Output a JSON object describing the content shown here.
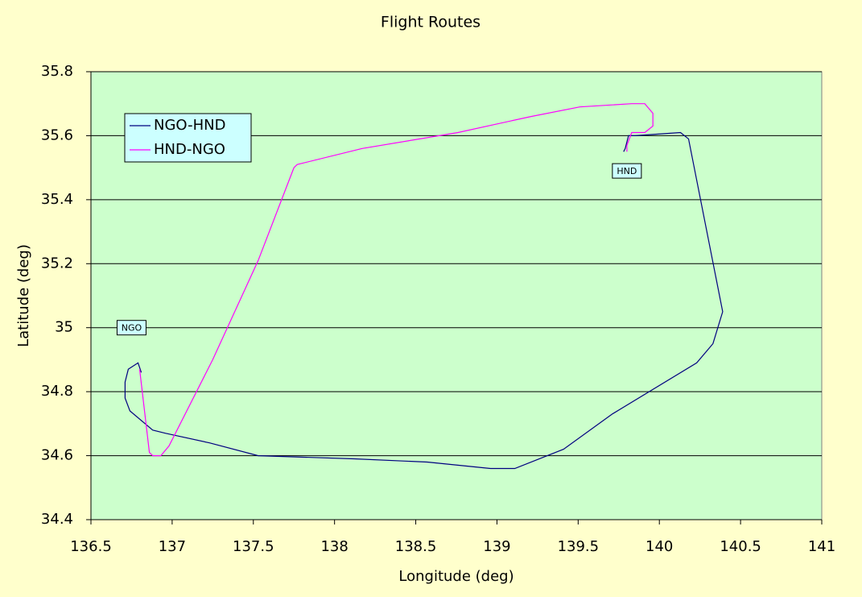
{
  "chart_data": {
    "type": "scatter-line",
    "title": "Flight Routes",
    "x_label": "Longitude (deg)",
    "y_label": "Latitude (deg)",
    "xlim": [
      136.5,
      141
    ],
    "xticks": [
      136.5,
      137,
      137.5,
      138,
      138.5,
      139,
      139.5,
      140,
      140.5,
      141
    ],
    "ylim": [
      34.4,
      35.8
    ],
    "yticks": [
      34.4,
      34.6,
      34.8,
      35,
      35.2,
      35.4,
      35.6,
      35.8
    ],
    "grid": true,
    "legend": "upper left",
    "series": [
      {
        "name": "NGO-HND",
        "color": "#000080",
        "x": [
          136.81,
          136.79,
          136.73,
          136.71,
          136.71,
          136.74,
          136.88,
          136.96,
          137.23,
          137.53,
          138.12,
          138.57,
          138.96,
          139.11,
          139.41,
          139.71,
          140.23,
          140.33,
          140.39,
          140.18,
          140.13,
          139.85,
          139.81,
          139.79,
          139.78
        ],
        "values": [
          34.86,
          34.89,
          34.87,
          34.83,
          34.78,
          34.74,
          34.68,
          34.67,
          34.64,
          34.6,
          34.59,
          34.58,
          34.56,
          34.56,
          34.62,
          34.73,
          34.89,
          34.95,
          35.05,
          35.59,
          35.61,
          35.6,
          35.6,
          35.56,
          35.55
        ]
      },
      {
        "name": "HND-NGO",
        "color": "#ff00ff",
        "x": [
          139.8,
          139.8,
          139.83,
          139.91,
          139.96,
          139.96,
          139.91,
          139.83,
          139.51,
          139.21,
          138.76,
          138.17,
          137.77,
          137.75,
          137.53,
          137.25,
          136.98,
          136.93,
          136.88,
          136.86,
          136.8
        ],
        "values": [
          35.55,
          35.57,
          35.61,
          35.61,
          35.63,
          35.67,
          35.7,
          35.7,
          35.69,
          35.66,
          35.61,
          35.56,
          35.51,
          35.5,
          35.21,
          34.9,
          34.63,
          34.6,
          34.6,
          34.61,
          34.87
        ]
      }
    ],
    "annotations": [
      {
        "text": "NGO",
        "x": 136.75,
        "y": 35.0
      },
      {
        "text": "HND",
        "x": 139.8,
        "y": 35.49
      }
    ]
  }
}
